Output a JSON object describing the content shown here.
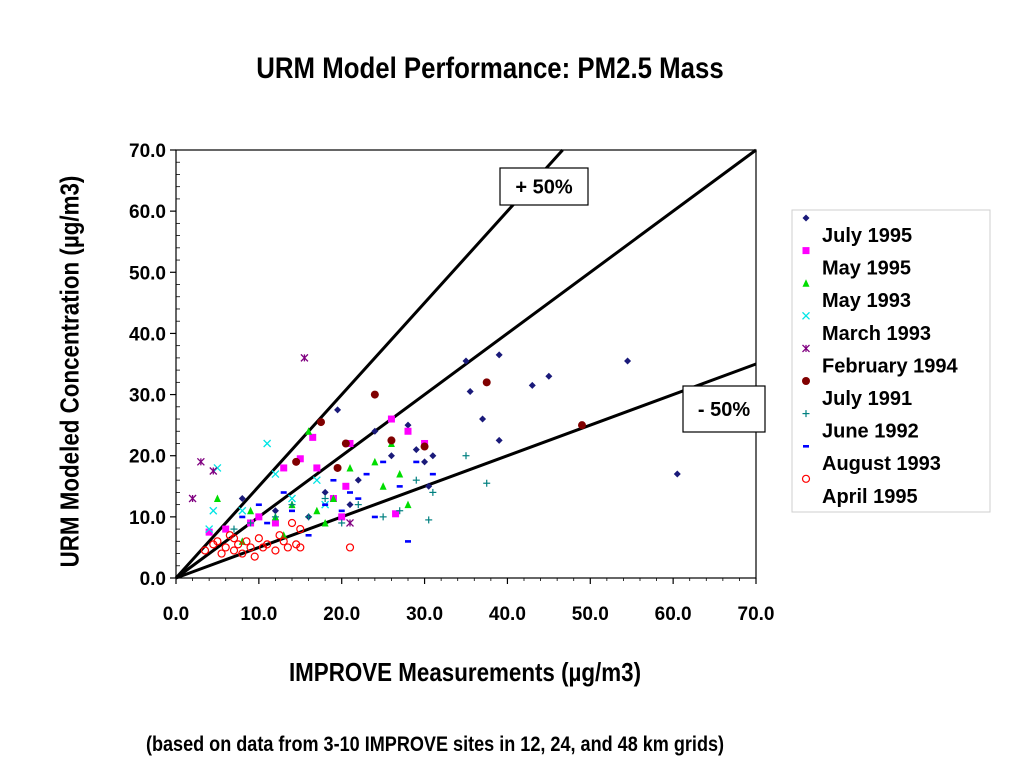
{
  "chart_data": {
    "type": "scatter",
    "title": "URM Model Performance:  PM2.5 Mass",
    "xlabel": "IMPROVE Measurements (µg/m3)",
    "ylabel": "URM  Modeled Concentration (µg/m3)",
    "footnote": "(based on data from 3-10 IMPROVE sites in 12, 24, and 48 km grids)",
    "xlim": [
      0,
      70
    ],
    "ylim": [
      0,
      70
    ],
    "xticks": [
      "0.0",
      "10.0",
      "20.0",
      "30.0",
      "40.0",
      "50.0",
      "60.0",
      "70.0"
    ],
    "yticks": [
      "0.0",
      "10.0",
      "20.0",
      "30.0",
      "40.0",
      "50.0",
      "60.0",
      "70.0"
    ],
    "grid": false,
    "legend_position": "right",
    "reference_lines": [
      {
        "label": "+ 50%",
        "slope": 1.5
      },
      {
        "label": "",
        "slope": 1.0
      },
      {
        "label": "- 50%",
        "slope": 0.5
      }
    ],
    "series": [
      {
        "name": "July 1995",
        "marker": "diamond",
        "color": "#1a1a7a",
        "points": [
          [
            8,
            13
          ],
          [
            12,
            11
          ],
          [
            16,
            10
          ],
          [
            18,
            14
          ],
          [
            19.5,
            27.5
          ],
          [
            21,
            12
          ],
          [
            22,
            16
          ],
          [
            24,
            24
          ],
          [
            26,
            20
          ],
          [
            28,
            25
          ],
          [
            29,
            21
          ],
          [
            30,
            19
          ],
          [
            30.5,
            15
          ],
          [
            31,
            20
          ],
          [
            35,
            35.5
          ],
          [
            35.5,
            30.5
          ],
          [
            37,
            26
          ],
          [
            39,
            36.5
          ],
          [
            39,
            22.5
          ],
          [
            43,
            31.5
          ],
          [
            45,
            33
          ],
          [
            54.5,
            35.5
          ],
          [
            60.5,
            17
          ]
        ]
      },
      {
        "name": "May 1995",
        "marker": "square",
        "color": "#ff00ff",
        "points": [
          [
            4,
            7.5
          ],
          [
            6,
            8
          ],
          [
            9,
            9
          ],
          [
            10,
            10
          ],
          [
            12,
            9
          ],
          [
            13,
            18
          ],
          [
            15,
            19.5
          ],
          [
            16.5,
            23
          ],
          [
            17,
            18
          ],
          [
            19,
            13
          ],
          [
            20,
            10
          ],
          [
            20.5,
            15
          ],
          [
            21,
            22
          ],
          [
            26,
            26
          ],
          [
            26.5,
            10.5
          ],
          [
            28,
            24
          ],
          [
            30,
            22
          ]
        ]
      },
      {
        "name": "May 1993",
        "marker": "triangle",
        "color": "#00dd00",
        "points": [
          [
            5,
            13
          ],
          [
            8,
            6
          ],
          [
            9,
            11
          ],
          [
            12,
            10
          ],
          [
            13,
            7
          ],
          [
            14,
            12
          ],
          [
            16,
            24
          ],
          [
            17,
            11
          ],
          [
            18,
            9
          ],
          [
            19,
            13
          ],
          [
            21,
            18
          ],
          [
            24,
            19
          ],
          [
            25,
            15
          ],
          [
            26,
            22
          ],
          [
            27,
            17
          ],
          [
            28,
            12
          ]
        ]
      },
      {
        "name": "March 1993",
        "marker": "x",
        "color": "#00e5e5",
        "points": [
          [
            4,
            8
          ],
          [
            4.5,
            11
          ],
          [
            5,
            18
          ],
          [
            8,
            11
          ],
          [
            11,
            22
          ],
          [
            12,
            17
          ],
          [
            14,
            13
          ],
          [
            17,
            16
          ],
          [
            18,
            12
          ]
        ]
      },
      {
        "name": "February 1994",
        "marker": "asterisk",
        "color": "#800080",
        "points": [
          [
            2,
            13
          ],
          [
            3,
            19
          ],
          [
            4.5,
            17.5
          ],
          [
            15.5,
            36
          ],
          [
            21,
            9
          ]
        ]
      },
      {
        "name": "July 1991",
        "marker": "circle",
        "color": "#800000",
        "points": [
          [
            14.5,
            19
          ],
          [
            17.5,
            25.5
          ],
          [
            19.5,
            18
          ],
          [
            20.5,
            22
          ],
          [
            24,
            30
          ],
          [
            26,
            22.5
          ],
          [
            30,
            21.5
          ],
          [
            37.5,
            32
          ],
          [
            49,
            25
          ]
        ]
      },
      {
        "name": "June 1992",
        "marker": "plus",
        "color": "#008080",
        "points": [
          [
            7,
            8
          ],
          [
            9,
            9
          ],
          [
            12,
            10
          ],
          [
            14,
            12
          ],
          [
            16,
            10
          ],
          [
            18,
            13
          ],
          [
            20,
            9
          ],
          [
            22,
            12
          ],
          [
            25,
            10
          ],
          [
            27,
            11
          ],
          [
            29,
            16
          ],
          [
            30.5,
            9.5
          ],
          [
            31,
            14
          ],
          [
            35,
            20
          ],
          [
            37.5,
            15.5
          ]
        ]
      },
      {
        "name": "August 1993",
        "marker": "dash",
        "color": "#0000ff",
        "points": [
          [
            8,
            10
          ],
          [
            10,
            12
          ],
          [
            11,
            9
          ],
          [
            13,
            14
          ],
          [
            14,
            11
          ],
          [
            16,
            7
          ],
          [
            18,
            12
          ],
          [
            19,
            16
          ],
          [
            20,
            11
          ],
          [
            21,
            14
          ],
          [
            22,
            13
          ],
          [
            23,
            17
          ],
          [
            24,
            10
          ],
          [
            25,
            19
          ],
          [
            27,
            15
          ],
          [
            28,
            6
          ],
          [
            29,
            19
          ],
          [
            31,
            17
          ]
        ]
      },
      {
        "name": "April 1995",
        "marker": "open-circle",
        "color": "#ff0000",
        "points": [
          [
            3.5,
            4.5
          ],
          [
            4.5,
            5.5
          ],
          [
            5,
            6
          ],
          [
            5.5,
            4
          ],
          [
            6,
            5
          ],
          [
            6.5,
            7
          ],
          [
            7,
            4.5
          ],
          [
            7,
            6.5
          ],
          [
            7.5,
            5.5
          ],
          [
            8,
            4
          ],
          [
            8.5,
            6
          ],
          [
            9,
            5
          ],
          [
            9.5,
            3.5
          ],
          [
            10,
            6.5
          ],
          [
            10.5,
            5
          ],
          [
            11,
            5.5
          ],
          [
            12,
            4.5
          ],
          [
            12.5,
            7
          ],
          [
            13,
            6
          ],
          [
            13.5,
            5
          ],
          [
            14,
            9
          ],
          [
            14.5,
            5.5
          ],
          [
            15,
            5
          ],
          [
            15,
            8
          ],
          [
            21,
            5
          ]
        ]
      }
    ]
  }
}
